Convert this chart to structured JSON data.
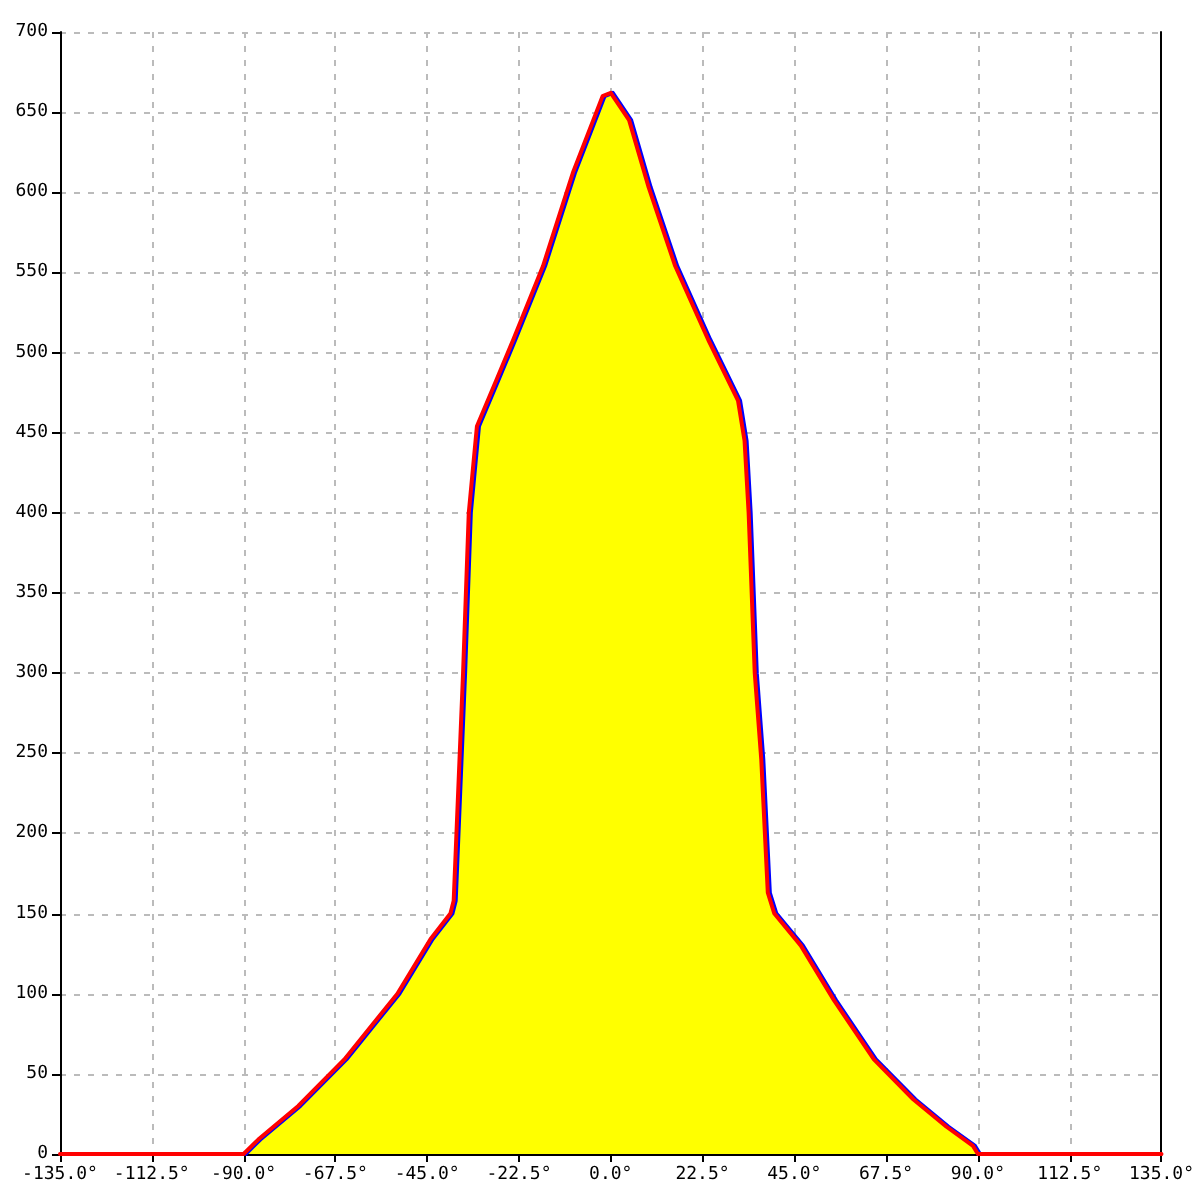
{
  "chart_data": {
    "type": "line",
    "xlim": [
      -135,
      135
    ],
    "xticks": [
      {
        "value": -135,
        "label": "-135.0°"
      },
      {
        "value": -112.5,
        "label": "-112.5°"
      },
      {
        "value": -90,
        "label": "-90.0°"
      },
      {
        "value": -67.5,
        "label": "-67.5°"
      },
      {
        "value": -45,
        "label": "-45.0°"
      },
      {
        "value": -22.5,
        "label": "-22.5°"
      },
      {
        "value": 0,
        "label": "0.0°"
      },
      {
        "value": 22.5,
        "label": "22.5°"
      },
      {
        "value": 45,
        "label": "45.0°"
      },
      {
        "value": 67.5,
        "label": "67.5°"
      },
      {
        "value": 90,
        "label": "90.0°"
      },
      {
        "value": 112.5,
        "label": "112.5°"
      },
      {
        "value": 135,
        "label": "135.0°"
      }
    ],
    "ylim": [
      0,
      700
    ],
    "yticks": [
      0,
      50,
      100,
      150,
      200,
      250,
      300,
      350,
      400,
      450,
      500,
      550,
      600,
      650,
      700
    ],
    "grid": true,
    "line_style": "solid",
    "marker": "none",
    "series": [
      {
        "type": "area",
        "color": "#ffff00",
        "x": [
          -90,
          -86.4,
          -76.6,
          -65.3,
          -52.3,
          -44.2,
          -39.3,
          -38.5,
          -36.2,
          -34.8,
          -32.8,
          -28,
          -23.9,
          -16.6,
          -9.3,
          -2,
          0,
          4.5,
          9.3,
          15.8,
          23.9,
          31.2,
          32.8,
          33.8,
          35.3,
          36.9,
          38.5,
          40.1,
          46.6,
          54.7,
          64.5,
          74.2,
          82.3,
          88.8,
          90
        ],
        "values": [
          0,
          9,
          30,
          59,
          100,
          134,
          150,
          158,
          300,
          400,
          454,
          483,
          508,
          554,
          612,
          660,
          662,
          645,
          603,
          554,
          508,
          470,
          445,
          400,
          300,
          246,
          163,
          150,
          130,
          96,
          59,
          34,
          17,
          5,
          0
        ]
      },
      {
        "type": "line",
        "color": "#0000ff",
        "x": [
          -89.5,
          -85.9,
          -76.1,
          -64.8,
          -51.8,
          -43.7,
          -38.8,
          -38,
          -35.7,
          -34.3,
          -32.3,
          -27.5,
          -23.4,
          -16.1,
          -8.8,
          -1.5,
          0.5,
          5,
          9.8,
          16.3,
          24.4,
          31.7,
          33.3,
          34.3,
          35.8,
          37.4,
          39,
          40.6,
          47.1,
          55.2,
          65,
          74.7,
          82.8,
          89.3,
          90.5
        ],
        "values": [
          0,
          9,
          30,
          59,
          100,
          134,
          150,
          158,
          300,
          400,
          454,
          483,
          508,
          554,
          612,
          660,
          662,
          645,
          603,
          554,
          508,
          470,
          445,
          400,
          300,
          246,
          163,
          150,
          130,
          96,
          59,
          34,
          17,
          5,
          0
        ]
      },
      {
        "type": "line",
        "color": "#ff0000",
        "x": [
          -135,
          -90,
          -86.4,
          -76.6,
          -65.3,
          -52.3,
          -44.2,
          -39.3,
          -38.5,
          -36.2,
          -34.8,
          -32.8,
          -28,
          -23.9,
          -16.6,
          -9.3,
          -2,
          0,
          4.5,
          9.3,
          15.8,
          23.9,
          31.2,
          32.8,
          33.8,
          35.3,
          36.9,
          38.5,
          40.1,
          46.6,
          54.7,
          64.5,
          74.2,
          82.3,
          88.8,
          90,
          135
        ],
        "values": [
          0,
          0,
          9,
          30,
          59,
          100,
          134,
          150,
          158,
          300,
          400,
          454,
          483,
          508,
          554,
          612,
          660,
          662,
          645,
          603,
          554,
          508,
          470,
          445,
          400,
          300,
          246,
          163,
          150,
          130,
          96,
          59,
          34,
          17,
          5,
          0,
          0
        ]
      }
    ]
  }
}
